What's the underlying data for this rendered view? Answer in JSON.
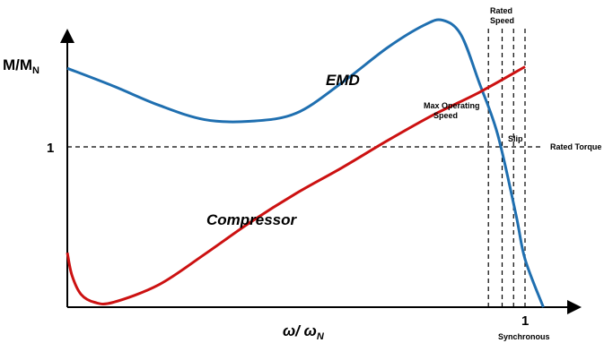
{
  "chart_data": {
    "type": "line",
    "y_label": "M/M",
    "y_label_sub": "N",
    "x_label": "ω/ ω",
    "x_label_sub": "N",
    "x_tick": "1",
    "y_tick": "1",
    "x_range": [
      0,
      1.04
    ],
    "y_range": [
      0,
      1.9
    ],
    "grid": false,
    "series": [
      {
        "name": "EMD",
        "color": "#1f6fb0",
        "points": [
          [
            0.0,
            1.49
          ],
          [
            0.1,
            1.38
          ],
          [
            0.2,
            1.26
          ],
          [
            0.3,
            1.17
          ],
          [
            0.4,
            1.16
          ],
          [
            0.5,
            1.21
          ],
          [
            0.6,
            1.4
          ],
          [
            0.7,
            1.62
          ],
          [
            0.78,
            1.76
          ],
          [
            0.82,
            1.79
          ],
          [
            0.86,
            1.7
          ],
          [
            0.9,
            1.4
          ],
          [
            0.94,
            1.08
          ],
          [
            0.98,
            0.58
          ],
          [
            1.0,
            0.3
          ],
          [
            1.04,
            0.0
          ]
        ]
      },
      {
        "name": "Compressor",
        "color": "#cc1111",
        "points": [
          [
            0.0,
            0.34
          ],
          [
            0.01,
            0.2
          ],
          [
            0.03,
            0.08
          ],
          [
            0.06,
            0.03
          ],
          [
            0.1,
            0.03
          ],
          [
            0.2,
            0.14
          ],
          [
            0.3,
            0.33
          ],
          [
            0.4,
            0.53
          ],
          [
            0.5,
            0.71
          ],
          [
            0.6,
            0.87
          ],
          [
            0.7,
            1.04
          ],
          [
            0.8,
            1.2
          ],
          [
            0.9,
            1.34
          ],
          [
            1.0,
            1.5
          ]
        ]
      }
    ],
    "reference_lines": {
      "rated_torque": {
        "y": 1.0,
        "label": "Rated Torque"
      },
      "vertical_markers": [
        0.92,
        0.95,
        0.975,
        1.0
      ]
    },
    "annotations": {
      "rated_speed": "Rated Speed",
      "max_operating_speed": "Max Operating Speed",
      "slip": "Slip",
      "synchronous": "Synchronous"
    }
  }
}
